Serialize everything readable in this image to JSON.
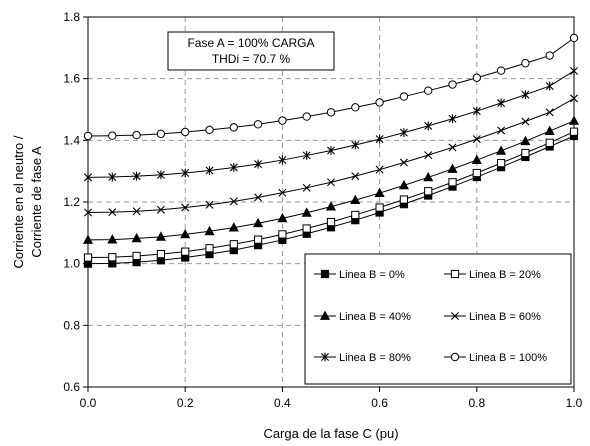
{
  "chart_data": {
    "type": "line",
    "title": "",
    "xlabel": "Carga de la fase C (pu)",
    "ylabel_lines": [
      "Corriente en el neutro /",
      "Corriente de fase A"
    ],
    "xlim": [
      0.0,
      1.0
    ],
    "ylim": [
      0.6,
      1.8
    ],
    "x_ticks": [
      "0.0",
      "0.2",
      "0.4",
      "0.6",
      "0.8",
      "1.0"
    ],
    "y_ticks": [
      "0.6",
      "0.8",
      "1.0",
      "1.2",
      "1.4",
      "1.6",
      "1.8"
    ],
    "grid": "dashed",
    "legend_placement": "bottom-right",
    "annotation_lines": [
      "Fase A = 100% CARGA",
      "THDi = 70.7 %"
    ],
    "x": [
      0.0,
      0.05,
      0.1,
      0.15,
      0.2,
      0.25,
      0.3,
      0.35,
      0.4,
      0.45,
      0.5,
      0.55,
      0.6,
      0.65,
      0.7,
      0.75,
      0.8,
      0.85,
      0.9,
      0.95,
      1.0
    ],
    "series": [
      {
        "name": "Linea B = 0%",
        "marker": "filled-square",
        "values": [
          1.0,
          1.001,
          1.005,
          1.011,
          1.02,
          1.031,
          1.044,
          1.06,
          1.077,
          1.097,
          1.118,
          1.141,
          1.166,
          1.193,
          1.221,
          1.25,
          1.281,
          1.313,
          1.346,
          1.38,
          1.414
        ]
      },
      {
        "name": "Linea B = 20%",
        "marker": "open-square",
        "values": [
          1.02,
          1.021,
          1.025,
          1.031,
          1.039,
          1.05,
          1.063,
          1.078,
          1.095,
          1.114,
          1.135,
          1.158,
          1.182,
          1.208,
          1.235,
          1.264,
          1.294,
          1.326,
          1.359,
          1.392,
          1.428
        ]
      },
      {
        "name": "Linea B = 40%",
        "marker": "filled-triangle",
        "values": [
          1.077,
          1.078,
          1.082,
          1.087,
          1.095,
          1.105,
          1.117,
          1.131,
          1.147,
          1.165,
          1.185,
          1.206,
          1.229,
          1.254,
          1.28,
          1.307,
          1.336,
          1.366,
          1.397,
          1.43,
          1.463
        ]
      },
      {
        "name": "Linea B = 60%",
        "marker": "x",
        "values": [
          1.166,
          1.167,
          1.17,
          1.175,
          1.182,
          1.191,
          1.202,
          1.215,
          1.23,
          1.246,
          1.264,
          1.284,
          1.305,
          1.328,
          1.352,
          1.377,
          1.404,
          1.432,
          1.461,
          1.491,
          1.536
        ]
      },
      {
        "name": "Linea B = 80%",
        "marker": "star",
        "values": [
          1.28,
          1.281,
          1.284,
          1.288,
          1.294,
          1.302,
          1.312,
          1.323,
          1.336,
          1.351,
          1.367,
          1.385,
          1.404,
          1.425,
          1.447,
          1.47,
          1.495,
          1.521,
          1.548,
          1.576,
          1.625
        ]
      },
      {
        "name": "Linea B = 100%",
        "marker": "open-circle",
        "values": [
          1.414,
          1.415,
          1.417,
          1.421,
          1.427,
          1.434,
          1.442,
          1.452,
          1.464,
          1.477,
          1.491,
          1.507,
          1.523,
          1.542,
          1.561,
          1.581,
          1.603,
          1.626,
          1.65,
          1.675,
          1.732
        ]
      }
    ]
  }
}
